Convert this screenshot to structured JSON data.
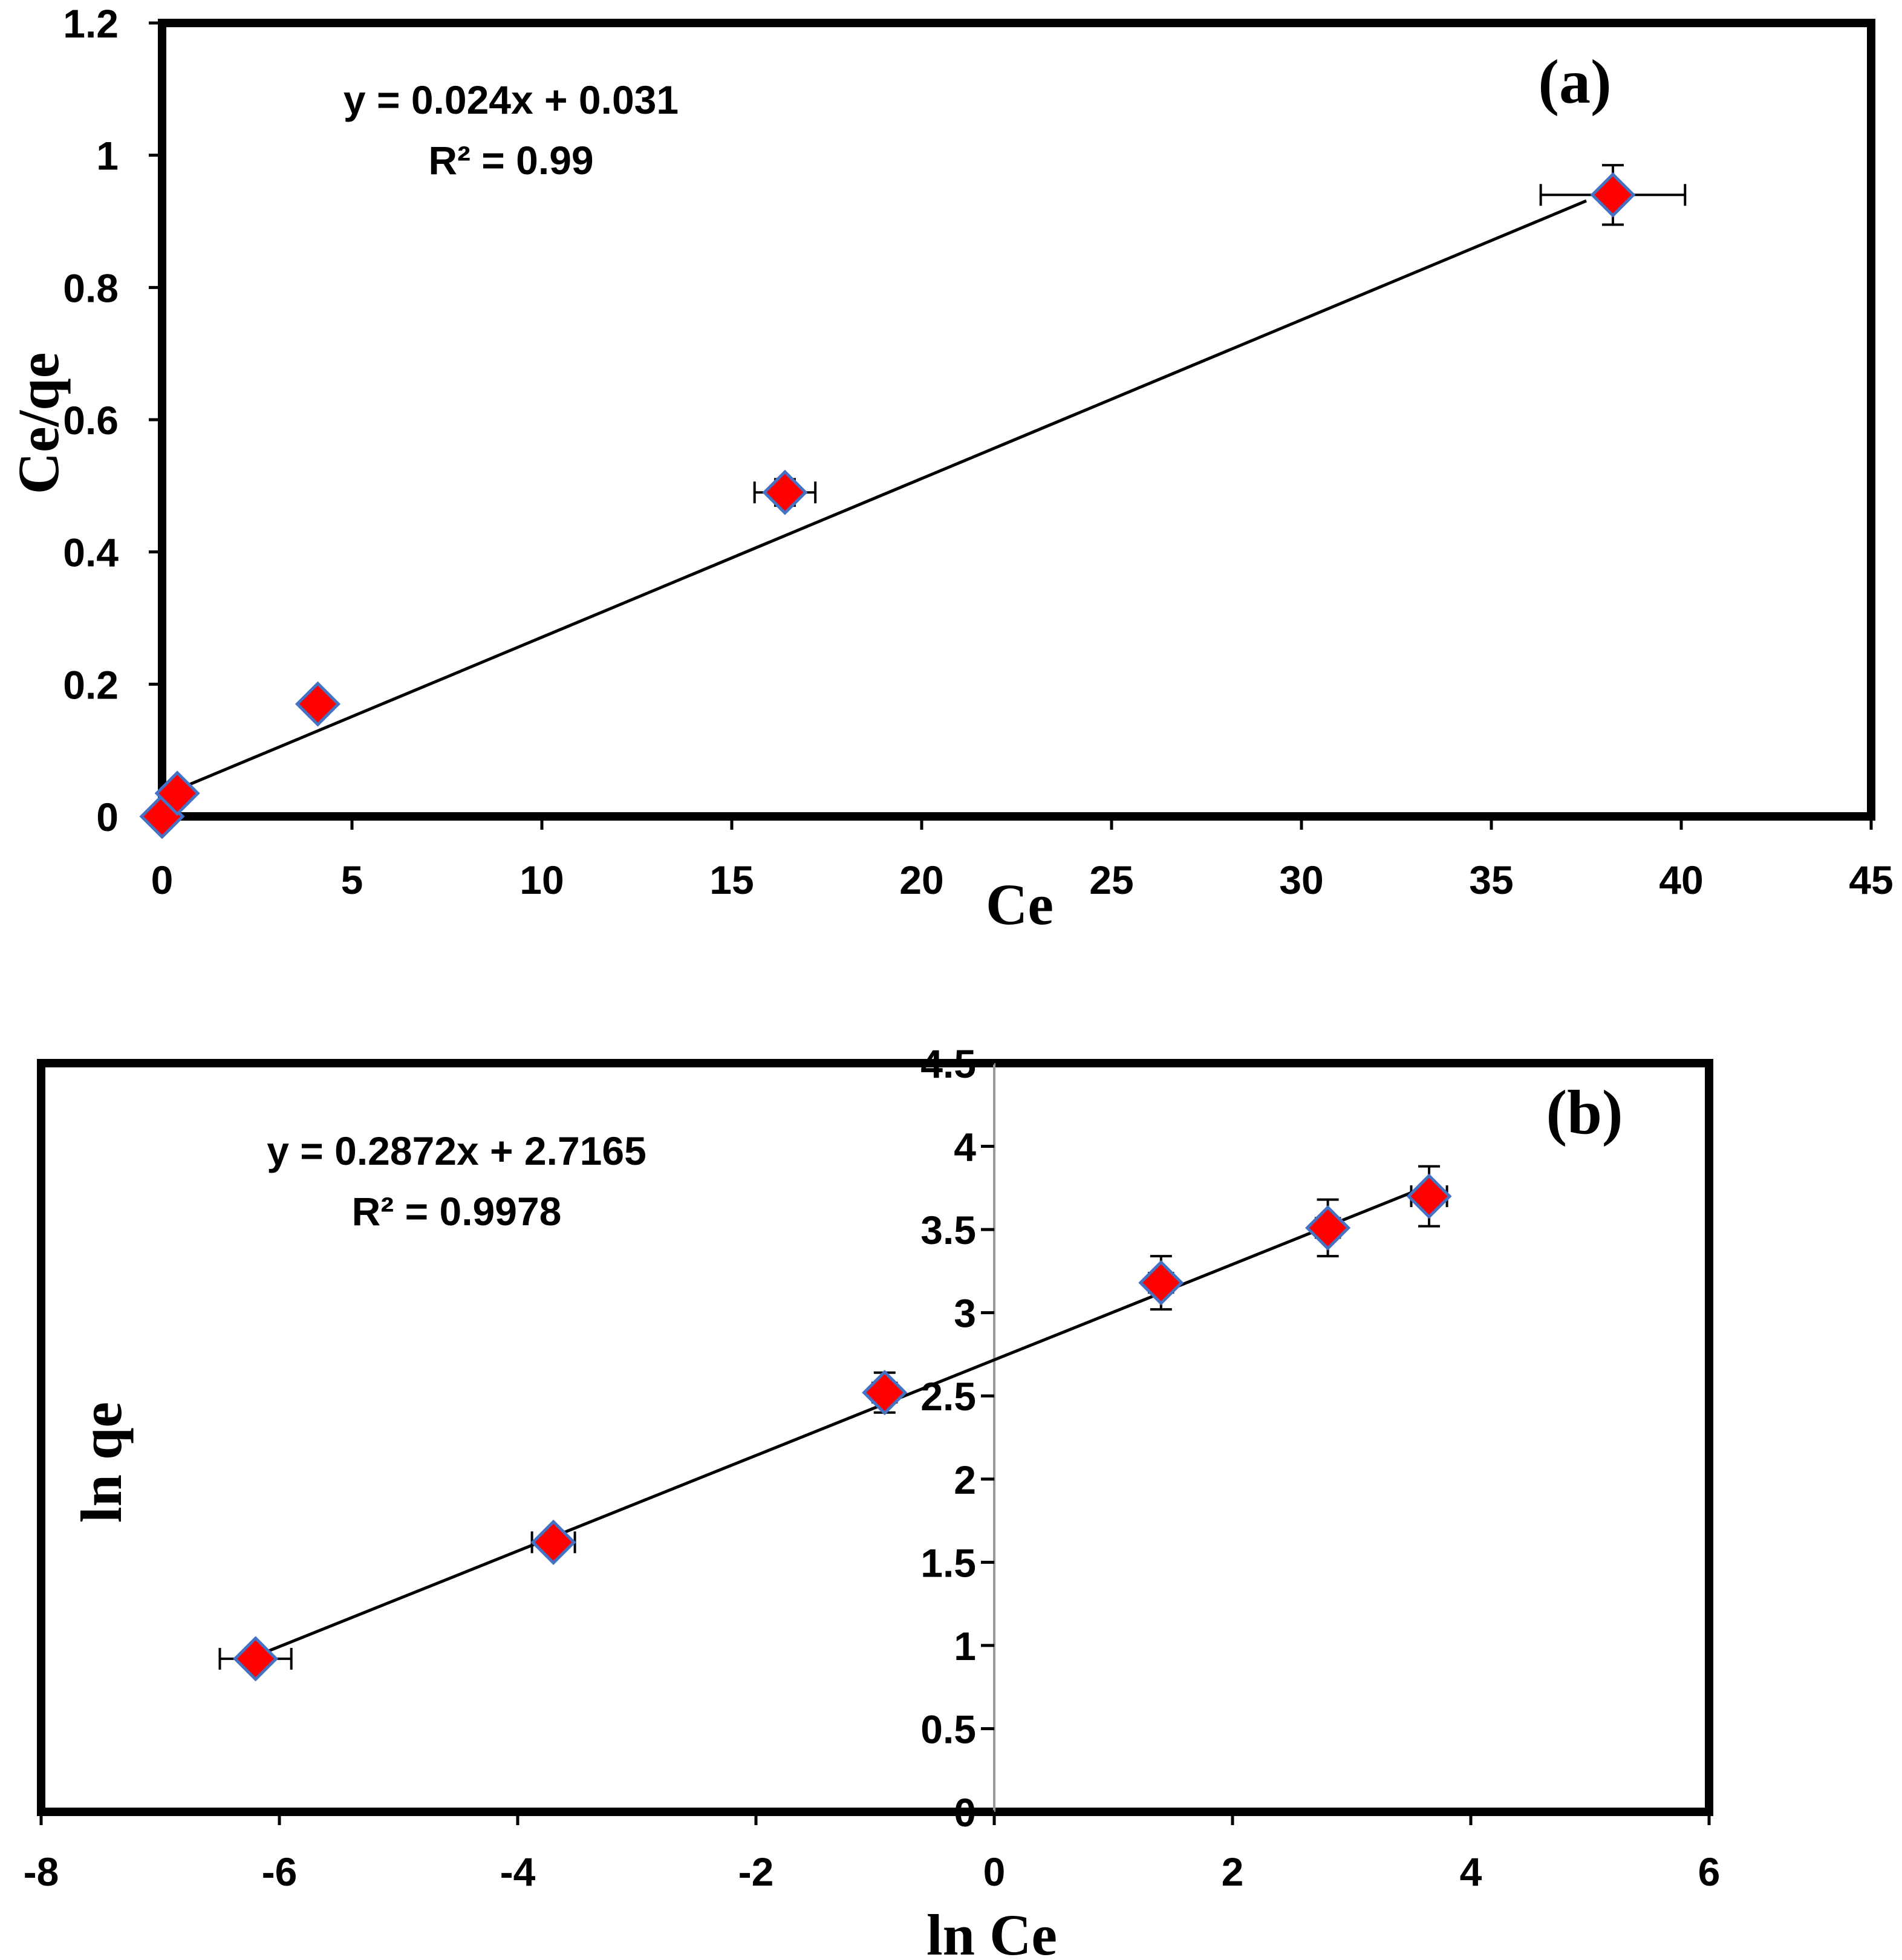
{
  "colors": {
    "marker_fill": "#ff0000",
    "marker_stroke": "#4472c4",
    "line": "#000000",
    "frame": "#000000"
  },
  "chart_data": [
    {
      "type": "scatter",
      "panel_label": "(a)",
      "xlabel": "Ce",
      "ylabel": "Ce/qe",
      "xlim": [
        0,
        45
      ],
      "ylim": [
        0,
        1.2
      ],
      "x_ticks": [
        "0",
        "5",
        "10",
        "15",
        "20",
        "25",
        "30",
        "35",
        "40",
        "45"
      ],
      "y_ticks": [
        "0",
        "0.2",
        "0.4",
        "0.6",
        "0.8",
        "1",
        "1.2"
      ],
      "grid": false,
      "legend": "none",
      "equation": "y = 0.024x + 0.031",
      "r2": "R² = 0.99",
      "trendline": {
        "slope": 0.024,
        "intercept": 0.031,
        "x_range": [
          0,
          37.5
        ]
      },
      "points": [
        {
          "x": 0.0,
          "y": 0.0,
          "xerr": 0,
          "yerr": 0
        },
        {
          "x": 0.4,
          "y": 0.035,
          "xerr": 0,
          "yerr": 0
        },
        {
          "x": 4.1,
          "y": 0.17,
          "xerr": 0,
          "yerr": 0
        },
        {
          "x": 16.4,
          "y": 0.49,
          "xerr": 0.8,
          "yerr": 0.02
        },
        {
          "x": 38.2,
          "y": 0.94,
          "xerr": 1.9,
          "yerr": 0.045
        }
      ]
    },
    {
      "type": "scatter",
      "panel_label": "(b)",
      "xlabel": "ln Ce",
      "ylabel": "ln qe",
      "xlim": [
        -8,
        6
      ],
      "ylim": [
        0,
        4.5
      ],
      "x_ticks": [
        "-8",
        "-6",
        "-4",
        "-2",
        "0",
        "2",
        "4",
        "6"
      ],
      "y_ticks": [
        "0",
        "0.5",
        "1",
        "1.5",
        "2",
        "2.5",
        "3",
        "3.5",
        "4",
        "4.5"
      ],
      "grid": false,
      "legend": "none",
      "equation": "y = 0.2872x + 2.7165",
      "r2": "R² = 0.9978",
      "trendline": {
        "slope": 0.2872,
        "intercept": 2.7165,
        "x_range": [
          -6.2,
          3.65
        ]
      },
      "points": [
        {
          "x": -6.2,
          "y": 0.92,
          "xerr": 0.3,
          "yerr": 0.03
        },
        {
          "x": -3.7,
          "y": 1.62,
          "xerr": 0.18,
          "yerr": 0.03
        },
        {
          "x": -0.92,
          "y": 2.52,
          "xerr": 0.1,
          "yerr": 0.12
        },
        {
          "x": 1.4,
          "y": 3.18,
          "xerr": 0.1,
          "yerr": 0.16
        },
        {
          "x": 2.8,
          "y": 3.51,
          "xerr": 0.1,
          "yerr": 0.17
        },
        {
          "x": 3.65,
          "y": 3.7,
          "xerr": 0.15,
          "yerr": 0.18
        }
      ]
    }
  ]
}
